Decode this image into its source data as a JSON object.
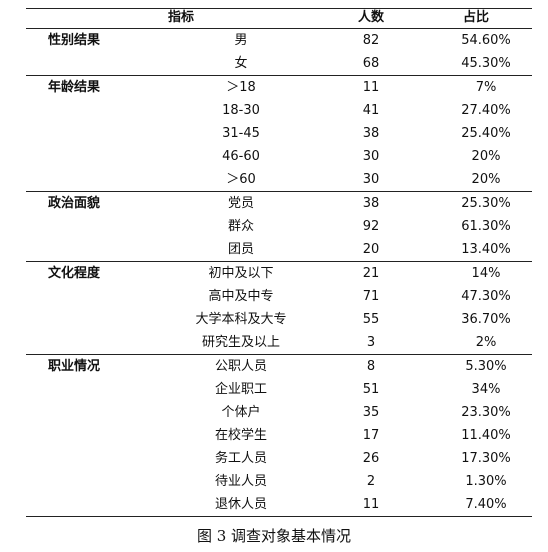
{
  "table": {
    "headers": {
      "indicator": "指标",
      "count": "人数",
      "pct": "占比"
    },
    "groups": [
      {
        "name": "性别结果",
        "rows": [
          {
            "item": "男",
            "count": "82",
            "pct": "54.60%"
          },
          {
            "item": "女",
            "count": "68",
            "pct": "45.30%"
          }
        ]
      },
      {
        "name": "年龄结果",
        "rows": [
          {
            "item": "＞18",
            "count": "11",
            "pct": "7%"
          },
          {
            "item": "18-30",
            "count": "41",
            "pct": "27.40%"
          },
          {
            "item": "31-45",
            "count": "38",
            "pct": "25.40%"
          },
          {
            "item": "46-60",
            "count": "30",
            "pct": "20%"
          },
          {
            "item": "＞60",
            "count": "30",
            "pct": "20%"
          }
        ]
      },
      {
        "name": "政治面貌",
        "rows": [
          {
            "item": "党员",
            "count": "38",
            "pct": "25.30%"
          },
          {
            "item": "群众",
            "count": "92",
            "pct": "61.30%"
          },
          {
            "item": "团员",
            "count": "20",
            "pct": "13.40%"
          }
        ]
      },
      {
        "name": "文化程度",
        "rows": [
          {
            "item": "初中及以下",
            "count": "21",
            "pct": "14%"
          },
          {
            "item": "高中及中专",
            "count": "71",
            "pct": "47.30%"
          },
          {
            "item": "大学本科及大专",
            "count": "55",
            "pct": "36.70%"
          },
          {
            "item": "研究生及以上",
            "count": "3",
            "pct": "2%"
          }
        ]
      },
      {
        "name": "职业情况",
        "rows": [
          {
            "item": "公职人员",
            "count": "8",
            "pct": "5.30%"
          },
          {
            "item": "企业职工",
            "count": "51",
            "pct": "34%"
          },
          {
            "item": "个体户",
            "count": "35",
            "pct": "23.30%"
          },
          {
            "item": "在校学生",
            "count": "17",
            "pct": "11.40%"
          },
          {
            "item": "务工人员",
            "count": "26",
            "pct": "17.30%"
          },
          {
            "item": "待业人员",
            "count": "2",
            "pct": "1.30%"
          },
          {
            "item": "退休人员",
            "count": "11",
            "pct": "7.40%"
          }
        ]
      }
    ]
  },
  "caption": "图 3  调查对象基本情况"
}
